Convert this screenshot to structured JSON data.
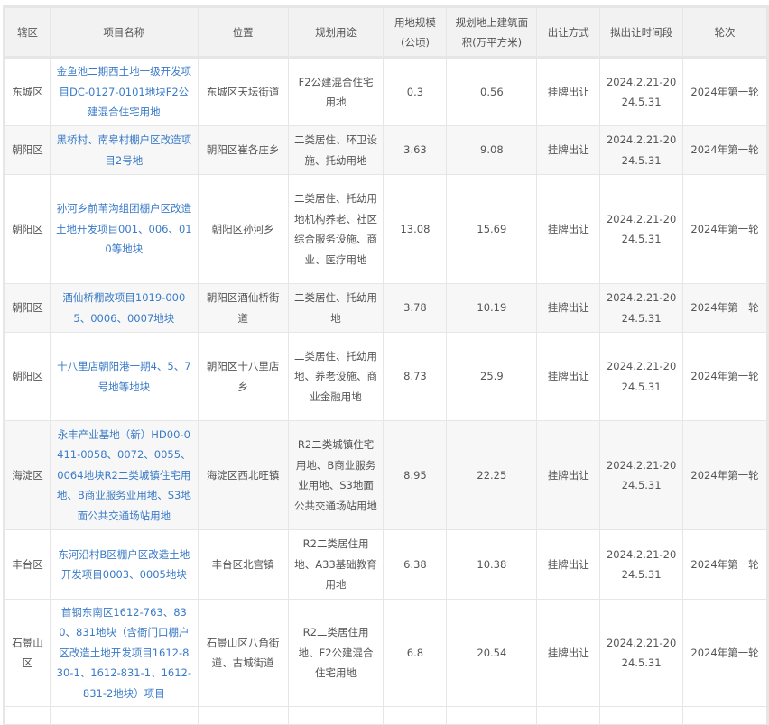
{
  "headers": [
    "辖区",
    "项目名称",
    "位置",
    "规划用途",
    "用地规模(公顷)",
    "规划地上建筑面积(万平方米)",
    "出让方式",
    "拟出让时间段",
    "轮次"
  ],
  "rows": [
    {
      "district": "东城区",
      "name": "金鱼池二期西土地一级开发项目DC-0127-0101地块F2公建混合住宅用地",
      "location": "东城区天坛街道",
      "use": "F2公建混合住宅用地",
      "area": "0.3",
      "floor_area": "0.56",
      "method": "挂牌出让",
      "period": "2024.2.21-2024.5.31",
      "round": "2024年第一轮"
    },
    {
      "district": "朝阳区",
      "name": "黑桥村、南皋村棚户区改造项目2号地",
      "location": "朝阳区崔各庄乡",
      "use": "二类居住、环卫设施、托幼用地",
      "area": "3.63",
      "floor_area": "9.08",
      "method": "挂牌出让",
      "period": "2024.2.21-2024.5.31",
      "round": "2024年第一轮"
    },
    {
      "district": "朝阳区",
      "name": "孙河乡前苇沟组团棚户区改造土地开发项目001、006、010等地块",
      "location": "朝阳区孙河乡",
      "use": "二类居住、托幼用地机构养老、社区综合服务设施、商业、医疗用地",
      "area": "13.08",
      "floor_area": "15.69",
      "method": "挂牌出让",
      "period": "2024.2.21-2024.5.31",
      "round": "2024年第一轮"
    },
    {
      "district": "朝阳区",
      "name": "酒仙桥棚改项目1019-0005、0006、0007地块",
      "location": "朝阳区酒仙桥街道",
      "use": "二类居住、托幼用地",
      "area": "3.78",
      "floor_area": "10.19",
      "method": "挂牌出让",
      "period": "2024.2.21-2024.5.31",
      "round": "2024年第一轮"
    },
    {
      "district": "朝阳区",
      "name": "十八里店朝阳港一期4、5、7号地等地块",
      "location": "朝阳区十八里店乡",
      "use": "二类居住、托幼用地、养老设施、商业金融用地",
      "area": "8.73",
      "floor_area": "25.9",
      "method": "挂牌出让",
      "period": "2024.2.21-2024.5.31",
      "round": "2024年第一轮"
    },
    {
      "district": "海淀区",
      "name": "永丰产业基地（新）HD00-0411-0058、0072、0055、0064地块R2二类城镇住宅用地、B商业服务业用地、S3地面公共交通场站用地",
      "location": "海淀区西北旺镇",
      "use": "R2二类城镇住宅用地、B商业服务业用地、S3地面公共交通场站用地",
      "area": "8.95",
      "floor_area": "22.25",
      "method": "挂牌出让",
      "period": "2024.2.21-2024.5.31",
      "round": "2024年第一轮"
    },
    {
      "district": "丰台区",
      "name": "东河沿村B区棚户区改造土地开发项目0003、0005地块",
      "location": "丰台区北宫镇",
      "use": "R2二类居住用地、A33基础教育用地",
      "area": "6.38",
      "floor_area": "10.38",
      "method": "挂牌出让",
      "period": "2024.2.21-2024.5.31",
      "round": "2024年第一轮"
    },
    {
      "district": "石景山区",
      "name": "首钢东南区1612-763、830、831地块（含衙门口棚户区改造土地开发项目1612-830-1、1612-831-1、1612-831-2地块）项目",
      "location": "石景山区八角街道、古城街道",
      "use": "R2二类居住用地、F2公建混合住宅用地",
      "area": "6.8",
      "floor_area": "20.54",
      "method": "挂牌出让",
      "period": "2024.2.21-2024.5.31",
      "round": "2024年第一轮"
    }
  ]
}
